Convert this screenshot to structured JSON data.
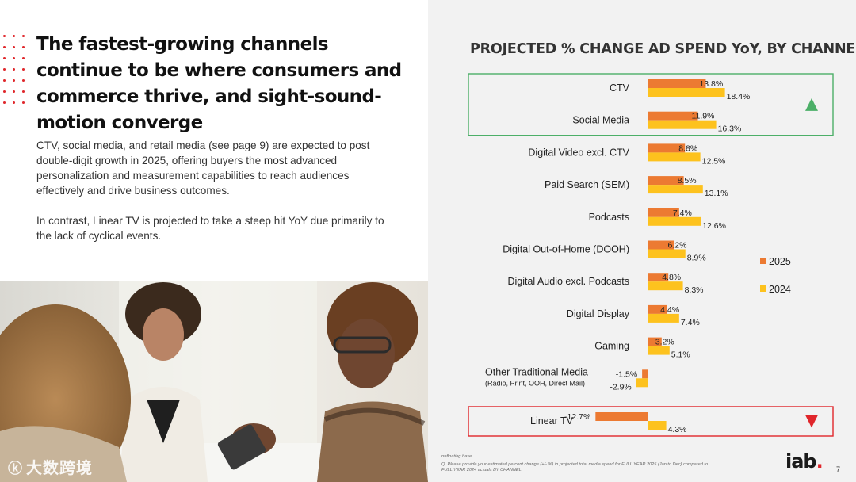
{
  "left": {
    "title": "The fastest-growing channels continue to be where consumers and commerce thrive, and sight-sound-motion converge",
    "paragraph1": "CTV, social media, and retail media (see page 9) are expected to post double-digit growth in 2025, offering buyers the most advanced personalization and measurement capabilities to reach audiences effectively and drive business outcomes.",
    "paragraph2": "In contrast, Linear TV is projected to take a steep hit YoY due primarily to the lack of cyclical events.",
    "watermark": "大数跨境"
  },
  "chart_data": {
    "type": "bar",
    "orientation": "horizontal",
    "title": "PROJECTED % CHANGE AD SPEND YoY, BY CHANNEL",
    "categories": [
      {
        "label": "CTV",
        "sublabel": ""
      },
      {
        "label": "Social Media",
        "sublabel": ""
      },
      {
        "label": "Digital Video excl. CTV",
        "sublabel": ""
      },
      {
        "label": "Paid Search (SEM)",
        "sublabel": ""
      },
      {
        "label": "Podcasts",
        "sublabel": ""
      },
      {
        "label": "Digital Out-of-Home (DOOH)",
        "sublabel": ""
      },
      {
        "label": "Digital Audio excl. Podcasts",
        "sublabel": ""
      },
      {
        "label": "Digital Display",
        "sublabel": ""
      },
      {
        "label": "Gaming",
        "sublabel": ""
      },
      {
        "label": "Other Traditional Media",
        "sublabel": "(Radio, Print, OOH, Direct Mail)"
      },
      {
        "label": "Linear TV",
        "sublabel": ""
      }
    ],
    "series": [
      {
        "name": "2025",
        "color": "#ec7a32",
        "values": [
          13.8,
          11.9,
          8.8,
          8.5,
          7.4,
          6.2,
          4.8,
          4.4,
          3.2,
          -1.5,
          -12.7
        ],
        "labels": [
          "13.8%",
          "11.9%",
          "8.8%",
          "8.5%",
          "7.4%",
          "6.2%",
          "4.8%",
          "4.4%",
          "3.2%",
          "-1.5%",
          "-12.7%"
        ]
      },
      {
        "name": "2024",
        "color": "#fdc21e",
        "values": [
          18.4,
          16.3,
          12.5,
          13.1,
          12.6,
          8.9,
          8.3,
          7.4,
          5.1,
          -2.9,
          4.3
        ],
        "labels": [
          "18.4%",
          "16.3%",
          "12.5%",
          "13.1%",
          "12.6%",
          "8.9%",
          "8.3%",
          "7.4%",
          "5.1%",
          "-2.9%",
          "4.3%"
        ]
      }
    ],
    "legend": [
      "2025",
      "2024"
    ],
    "legend_position": "right",
    "highlights": [
      {
        "categories": [
          "CTV",
          "Social Media"
        ],
        "color": "#4caf68",
        "marker": "up-arrow"
      },
      {
        "categories": [
          "Linear TV"
        ],
        "color": "#e0262b",
        "marker": "down-arrow"
      }
    ]
  },
  "footnote": {
    "base": "n=floating base",
    "question": "Q. Please provide your estimated percent change (+/- %) in projected total media spend for FULL YEAR 2025 (Jan to Dec) compared to FULL YEAR 2024 actuals BY CHANNEL."
  },
  "brand": {
    "logo": "iab",
    "page": "7"
  }
}
